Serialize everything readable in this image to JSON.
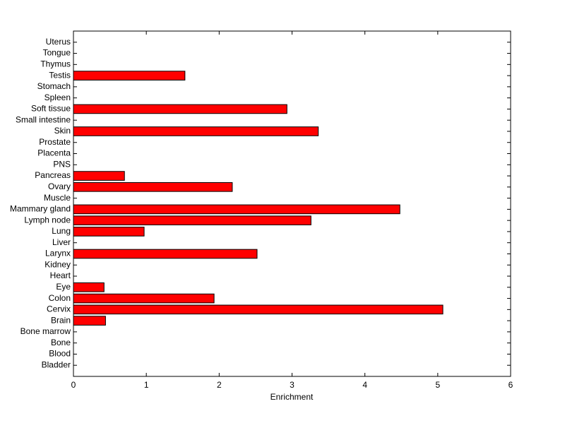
{
  "chart_data": {
    "type": "barh",
    "xlabel": "Enrichment",
    "categories": [
      "Bladder",
      "Blood",
      "Bone",
      "Bone marrow",
      "Brain",
      "Cervix",
      "Colon",
      "Eye",
      "Heart",
      "Kidney",
      "Larynx",
      "Liver",
      "Lung",
      "Lymph node",
      "Mammary gland",
      "Muscle",
      "Ovary",
      "Pancreas",
      "PNS",
      "Placenta",
      "Prostate",
      "Skin",
      "Small intestine",
      "Soft tissue",
      "Spleen",
      "Stomach",
      "Testis",
      "Thymus",
      "Tongue",
      "Uterus"
    ],
    "values": [
      0,
      0,
      0,
      0,
      0.44,
      5.07,
      1.93,
      0.42,
      0,
      0,
      2.52,
      0,
      0.97,
      3.26,
      4.48,
      0,
      2.18,
      0.7,
      0,
      0,
      0,
      3.36,
      0,
      2.93,
      0,
      0,
      1.53,
      0,
      0,
      0
    ],
    "color": "#ff0000",
    "xlim": [
      0,
      6
    ],
    "xticks": [
      0,
      1,
      2,
      3,
      4,
      5,
      6
    ],
    "grid": false
  }
}
